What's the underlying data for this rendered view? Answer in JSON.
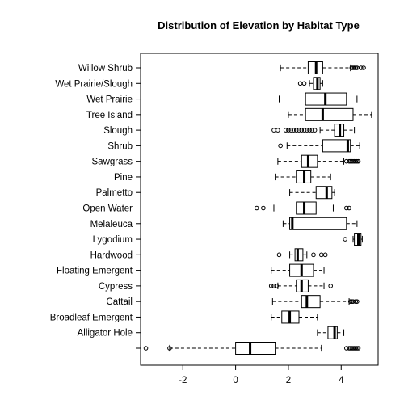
{
  "chart_data": {
    "type": "boxplot",
    "orientation": "horizontal",
    "title": "Distribution of Elevation by Habitat Type",
    "xlabel": "",
    "ylabel": "",
    "xlim": [
      -3.6,
      5.4
    ],
    "xticks": [
      -2,
      0,
      2,
      4
    ],
    "grid": false,
    "legend": "none",
    "categories": [
      "Willow Shrub",
      "Wet Prairie/Slough",
      "Wet Prairie",
      "Tree Island",
      "Slough",
      "Shrub",
      "Sawgrass",
      "Pine",
      "Palmetto",
      "Open Water",
      "Melaleuca",
      "Lygodium",
      "Hardwood",
      "Floating Emergent",
      "Cypress",
      "Cattail",
      "Broadleaf Emergent",
      "Alligator Hole",
      ""
    ],
    "boxes": [
      {
        "lower_whisker": 1.7,
        "q1": 2.75,
        "median": 3.05,
        "q3": 3.3,
        "upper_whisker": 4.35,
        "outliers": [
          4.4,
          4.45,
          4.5,
          4.55,
          4.6,
          4.75,
          4.85
        ]
      },
      {
        "lower_whisker": 2.8,
        "q1": 2.95,
        "median": 3.1,
        "q3": 3.2,
        "upper_whisker": 3.3,
        "outliers": [
          2.45,
          2.6
        ]
      },
      {
        "lower_whisker": 1.65,
        "q1": 2.65,
        "median": 3.4,
        "q3": 4.2,
        "upper_whisker": 4.6,
        "outliers": []
      },
      {
        "lower_whisker": 2.0,
        "q1": 2.65,
        "median": 3.3,
        "q3": 4.45,
        "upper_whisker": 5.15,
        "outliers": []
      },
      {
        "lower_whisker": 3.2,
        "q1": 3.75,
        "median": 3.95,
        "q3": 4.1,
        "upper_whisker": 4.5,
        "outliers": [
          1.45,
          1.6,
          1.9,
          2.0,
          2.1,
          2.2,
          2.3,
          2.4,
          2.5,
          2.6,
          2.7,
          2.8,
          2.9,
          3.0
        ]
      },
      {
        "lower_whisker": 1.95,
        "q1": 3.3,
        "median": 4.25,
        "q3": 4.35,
        "upper_whisker": 4.7,
        "outliers": [
          1.7
        ]
      },
      {
        "lower_whisker": 1.6,
        "q1": 2.5,
        "median": 2.75,
        "q3": 3.1,
        "upper_whisker": 4.1,
        "outliers": [
          4.2,
          4.3,
          4.35,
          4.4,
          4.45,
          4.5,
          4.55,
          4.6,
          4.65
        ]
      },
      {
        "lower_whisker": 1.5,
        "q1": 2.3,
        "median": 2.6,
        "q3": 2.85,
        "upper_whisker": 3.6,
        "outliers": []
      },
      {
        "lower_whisker": 2.05,
        "q1": 3.05,
        "median": 3.45,
        "q3": 3.65,
        "upper_whisker": 3.75,
        "outliers": []
      },
      {
        "lower_whisker": 1.45,
        "q1": 2.3,
        "median": 2.6,
        "q3": 3.05,
        "upper_whisker": 3.7,
        "outliers": [
          0.8,
          1.05,
          4.2,
          4.3
        ]
      },
      {
        "lower_whisker": 1.8,
        "q1": 2.05,
        "median": 2.15,
        "q3": 4.2,
        "upper_whisker": 4.6,
        "outliers": []
      },
      {
        "lower_whisker": 4.45,
        "q1": 4.5,
        "median": 4.65,
        "q3": 4.75,
        "upper_whisker": 4.8,
        "outliers": [
          4.15
        ]
      },
      {
        "lower_whisker": 2.05,
        "q1": 2.25,
        "median": 2.35,
        "q3": 2.55,
        "upper_whisker": 2.7,
        "outliers": [
          1.65,
          2.95,
          3.25,
          3.4
        ]
      },
      {
        "lower_whisker": 1.35,
        "q1": 2.05,
        "median": 2.5,
        "q3": 2.95,
        "upper_whisker": 3.35,
        "outliers": []
      },
      {
        "lower_whisker": 1.6,
        "q1": 2.3,
        "median": 2.5,
        "q3": 2.75,
        "upper_whisker": 3.35,
        "outliers": [
          1.35,
          1.45,
          1.55,
          3.6
        ]
      },
      {
        "lower_whisker": 1.4,
        "q1": 2.5,
        "median": 2.7,
        "q3": 3.2,
        "upper_whisker": 4.3,
        "outliers": [
          4.35,
          4.4,
          4.45,
          4.55,
          4.6
        ]
      },
      {
        "lower_whisker": 1.35,
        "q1": 1.75,
        "median": 2.05,
        "q3": 2.4,
        "upper_whisker": 3.1,
        "outliers": []
      },
      {
        "lower_whisker": 3.1,
        "q1": 3.5,
        "median": 3.75,
        "q3": 3.85,
        "upper_whisker": 4.1,
        "outliers": []
      },
      {
        "lower_whisker": -2.5,
        "q1": 0.0,
        "median": 0.55,
        "q3": 1.5,
        "upper_whisker": 3.25,
        "outliers": [
          -3.4,
          -2.5,
          4.2,
          4.3,
          4.35,
          4.4,
          4.45,
          4.5,
          4.55,
          4.6,
          4.65
        ]
      }
    ]
  }
}
